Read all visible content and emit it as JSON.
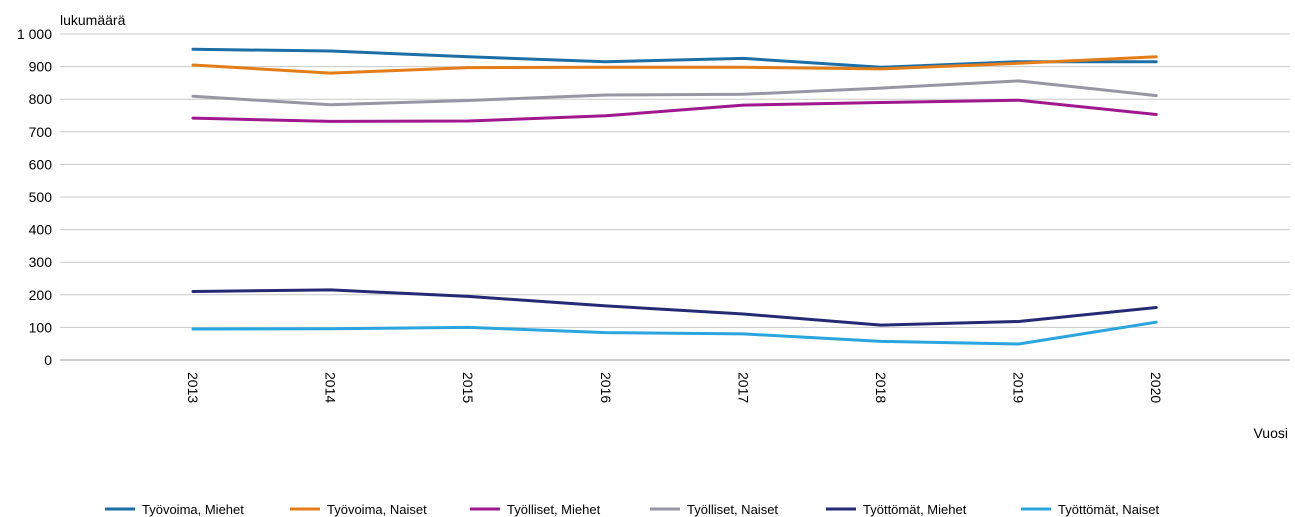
{
  "chart_data": {
    "type": "line",
    "ylabel": "lukumäärä",
    "xlabel": "Vuosi",
    "ylim": [
      0,
      1000
    ],
    "y_ticks": [
      {
        "value": 0,
        "label": "0"
      },
      {
        "value": 100,
        "label": "100"
      },
      {
        "value": 200,
        "label": "200"
      },
      {
        "value": 300,
        "label": "300"
      },
      {
        "value": 400,
        "label": "400"
      },
      {
        "value": 500,
        "label": "500"
      },
      {
        "value": 600,
        "label": "600"
      },
      {
        "value": 700,
        "label": "700"
      },
      {
        "value": 800,
        "label": "800"
      },
      {
        "value": 900,
        "label": "900"
      },
      {
        "value": 1000,
        "label": "1 000"
      }
    ],
    "categories": [
      "2013",
      "2014",
      "2015",
      "2016",
      "2017",
      "2018",
      "2019",
      "2020"
    ],
    "grid": true,
    "legend_position": "bottom",
    "series": [
      {
        "name": "Työvoima, Miehet",
        "color": "#1b6fa6",
        "values": [
          953,
          948,
          930,
          915,
          925,
          898,
          915,
          915
        ]
      },
      {
        "name": "Työvoima, Naiset",
        "color": "#e37d1a",
        "values": [
          905,
          880,
          897,
          898,
          898,
          893,
          910,
          930
        ]
      },
      {
        "name": "Työlliset, Miehet",
        "color": "#a0188e",
        "values": [
          742,
          732,
          733,
          749,
          782,
          790,
          797,
          753
        ]
      },
      {
        "name": "Työlliset, Naiset",
        "color": "#9696a5",
        "values": [
          809,
          783,
          796,
          813,
          815,
          834,
          856,
          811
        ]
      },
      {
        "name": "Työttömät, Miehet",
        "color": "#252a75",
        "values": [
          210,
          215,
          195,
          166,
          141,
          107,
          118,
          161
        ]
      },
      {
        "name": "Työttömät, Naiset",
        "color": "#2aa5de",
        "values": [
          95,
          96,
          100,
          84,
          80,
          57,
          49,
          116
        ]
      }
    ]
  }
}
